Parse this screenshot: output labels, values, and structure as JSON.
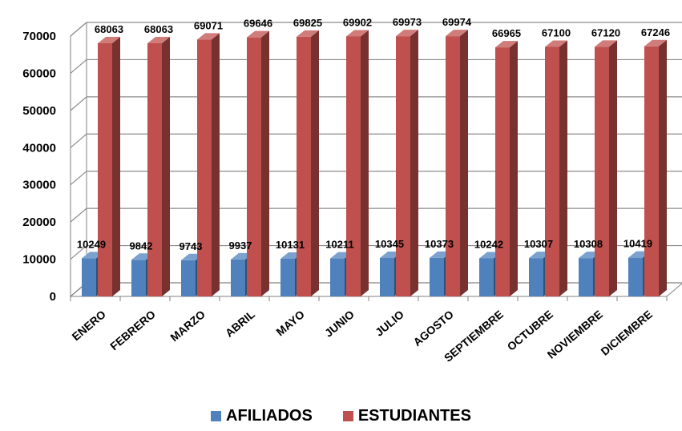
{
  "chart_data": {
    "type": "bar",
    "categories": [
      "ENERO",
      "FEBRERO",
      "MARZO",
      "ABRIL",
      "MAYO",
      "JUNIO",
      "JULIO",
      "AGOSTO",
      "SEPTIEMBRE",
      "OCTUBRE",
      "NOVIEMBRE",
      "DICIEMBRE"
    ],
    "series": [
      {
        "name": "AFILIADOS",
        "color": "#4f81bd",
        "values": [
          10249,
          9842,
          9743,
          9937,
          10131,
          10211,
          10345,
          10373,
          10242,
          10307,
          10308,
          10419
        ]
      },
      {
        "name": "ESTUDIANTES",
        "color": "#c0504d",
        "values": [
          68063,
          68063,
          69071,
          69646,
          69825,
          69902,
          69973,
          69974,
          66965,
          67100,
          67120,
          67246
        ]
      }
    ],
    "ylim": [
      0,
      70000
    ],
    "yticks": [
      0,
      10000,
      20000,
      30000,
      40000,
      50000,
      60000,
      70000
    ],
    "grid": true,
    "legend_position": "bottom",
    "style": "3d-column"
  }
}
